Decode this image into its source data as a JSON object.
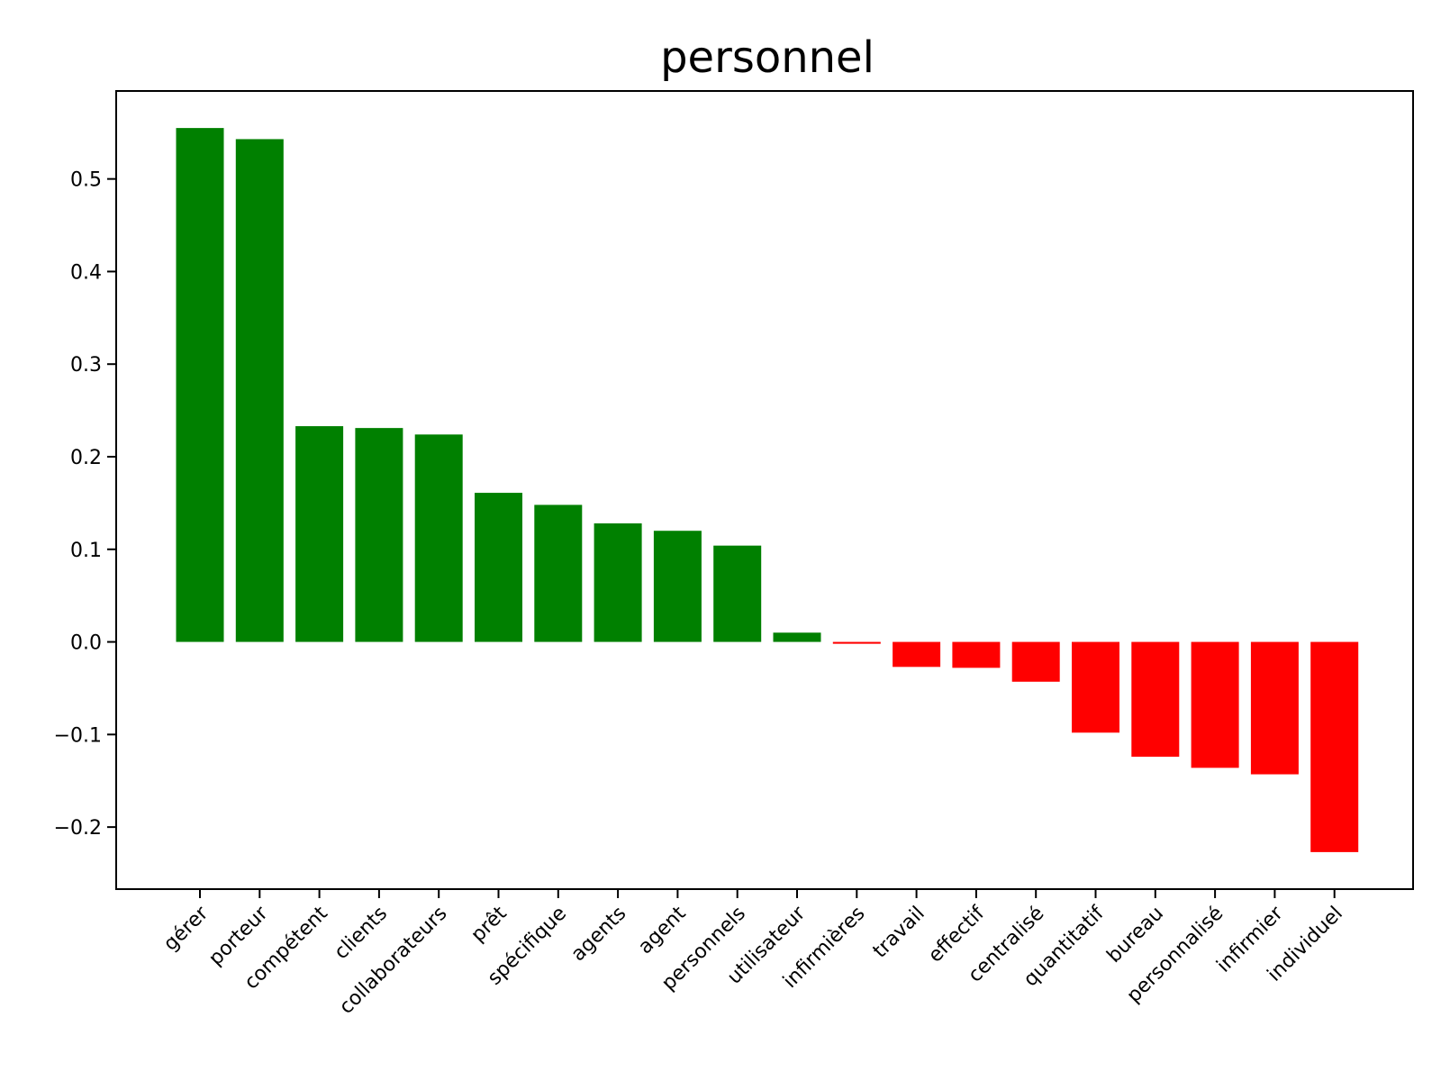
{
  "chart_data": {
    "type": "bar",
    "title": "personnel",
    "xlabel": "",
    "ylabel": "",
    "categories": [
      "gérer",
      "porteur",
      "compétent",
      "clients",
      "collaborateurs",
      "prêt",
      "spécifique",
      "agents",
      "agent",
      "personnels",
      "utilisateur",
      "infirmières",
      "travail",
      "effectif",
      "centralisé",
      "quantitatif",
      "bureau",
      "personnalisé",
      "infirmier",
      "individuel"
    ],
    "values": [
      0.555,
      0.543,
      0.233,
      0.231,
      0.224,
      0.161,
      0.148,
      0.128,
      0.12,
      0.104,
      0.01,
      -0.002,
      -0.027,
      -0.028,
      -0.043,
      -0.098,
      -0.124,
      -0.136,
      -0.143,
      -0.227
    ],
    "ylim": [
      -0.267,
      0.595
    ],
    "yticks": [
      -0.2,
      -0.1,
      0.0,
      0.1,
      0.2,
      0.3,
      0.4,
      0.5
    ],
    "ytick_labels": [
      "−0.2",
      "−0.1",
      "0.0",
      "0.1",
      "0.2",
      "0.3",
      "0.4",
      "0.5"
    ],
    "positive_color": "#008000",
    "negative_color": "#ff0000",
    "grid": false,
    "legend": "none"
  }
}
